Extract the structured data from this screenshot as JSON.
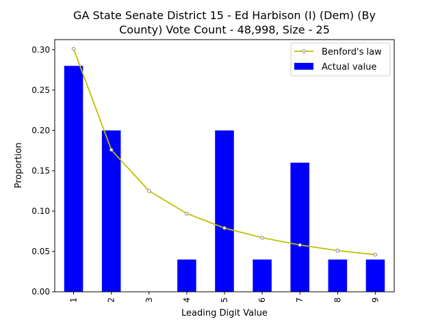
{
  "chart_data": {
    "type": "bar",
    "title_lines": [
      "GA State Senate District 15 - Ed Harbison (I) (Dem) (By",
      "County) Vote Count - 48,998, Size - 25"
    ],
    "xlabel": "Leading Digit Value",
    "ylabel": "Proportion",
    "categories": [
      "1",
      "2",
      "3",
      "4",
      "5",
      "6",
      "7",
      "8",
      "9"
    ],
    "ylim": [
      0,
      0.3125
    ],
    "yticks": [
      "0.00",
      "0.05",
      "0.10",
      "0.15",
      "0.20",
      "0.25",
      "0.30"
    ],
    "grid": false,
    "legend_position": "top-right",
    "series": [
      {
        "name": "Benford's law",
        "kind": "line",
        "color": "#bfbf00",
        "marker_color": "#808080",
        "values": [
          0.301,
          0.176,
          0.125,
          0.097,
          0.079,
          0.067,
          0.058,
          0.051,
          0.046
        ]
      },
      {
        "name": "Actual value",
        "kind": "bar",
        "color": "#0000ff",
        "values": [
          0.28,
          0.2,
          0.0,
          0.04,
          0.2,
          0.04,
          0.16,
          0.04,
          0.04
        ]
      }
    ]
  }
}
